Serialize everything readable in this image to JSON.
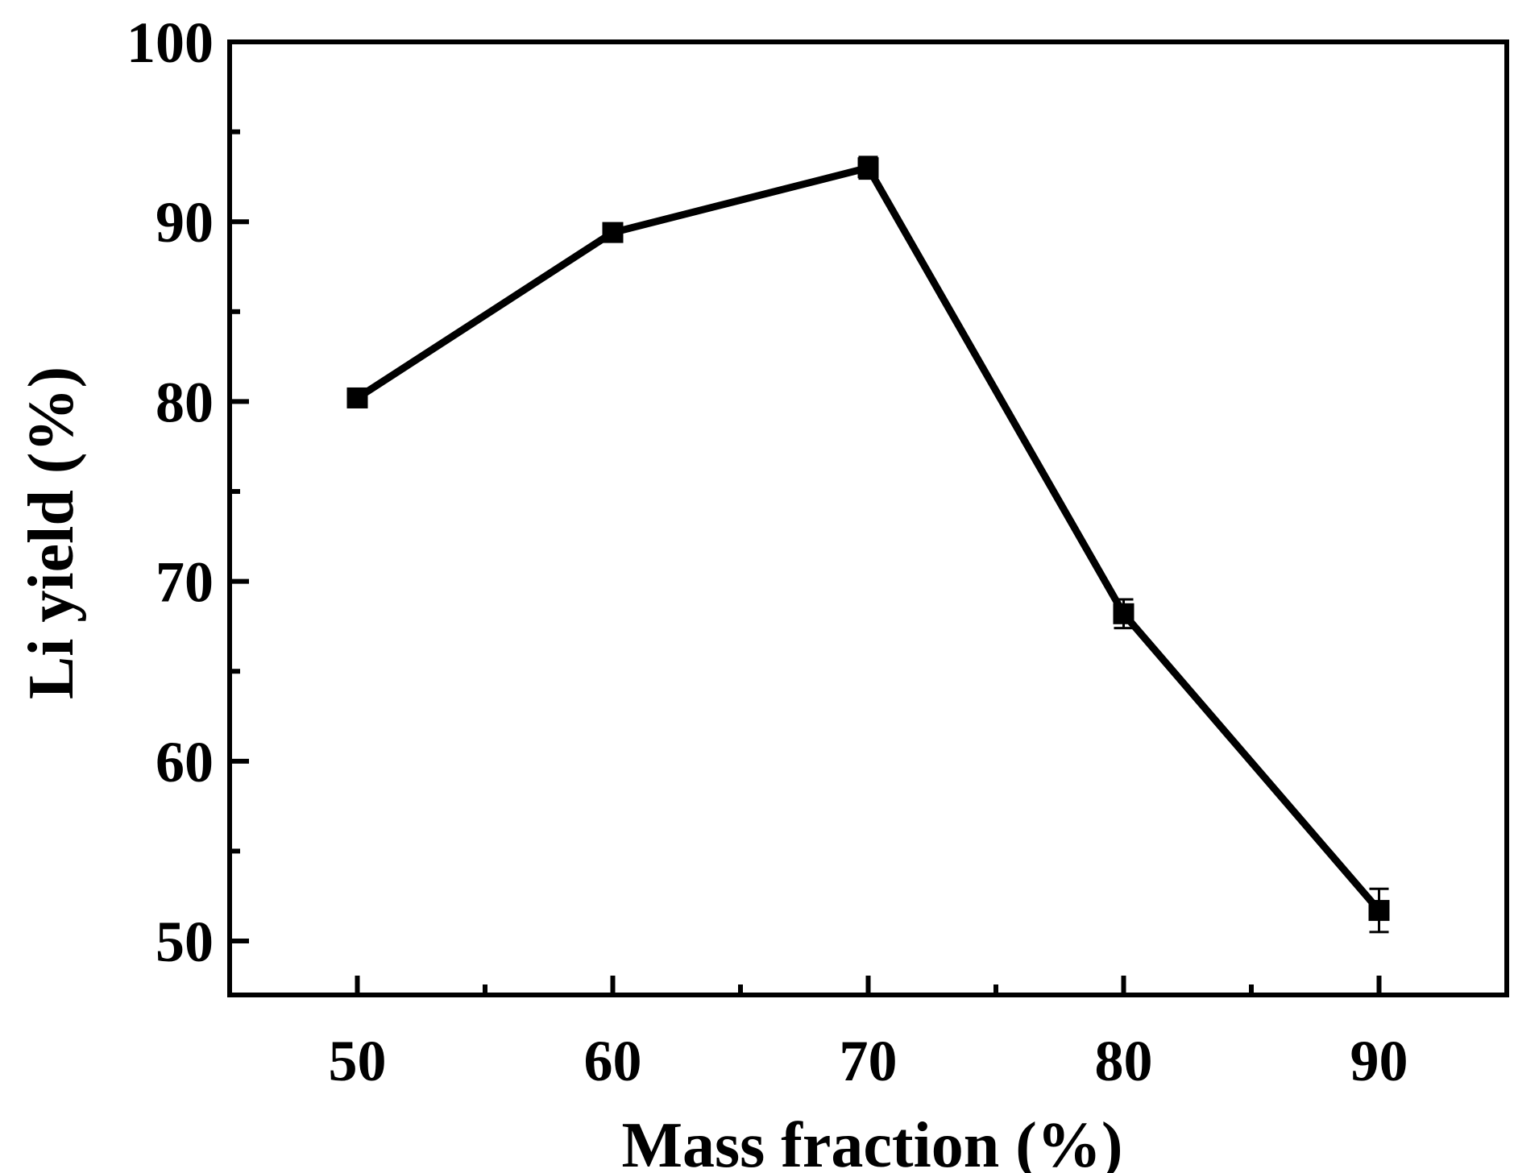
{
  "chart_data": {
    "type": "line",
    "title": "",
    "xlabel": "Mass fraction (%)",
    "ylabel": "Li yield (%)",
    "xlim": [
      45,
      95
    ],
    "ylim": [
      47,
      100
    ],
    "xticks": [
      50,
      60,
      70,
      80,
      90
    ],
    "yticks": [
      50,
      60,
      70,
      80,
      90,
      100
    ],
    "x_minor_ticks": [
      55,
      65,
      75,
      85
    ],
    "y_minor_ticks": [
      55,
      65,
      75,
      85,
      95
    ],
    "grid": false,
    "series": [
      {
        "name": "Li yield",
        "marker": "square",
        "color": "#000000",
        "x": [
          50,
          60,
          70,
          80,
          90
        ],
        "y": [
          80.2,
          89.4,
          93.0,
          68.2,
          51.7
        ],
        "error": [
          0.5,
          0.4,
          0.6,
          0.8,
          1.2
        ]
      }
    ]
  }
}
